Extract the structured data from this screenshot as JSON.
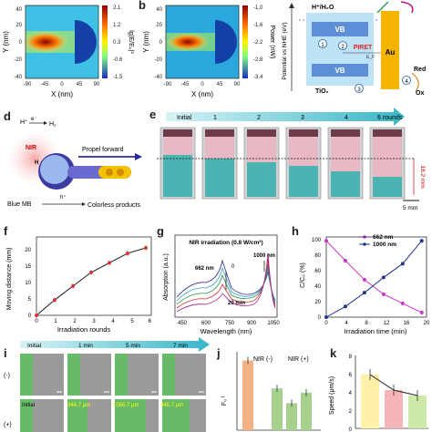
{
  "panels": {
    "a": {
      "ylabel": "Y (nm)",
      "xlabel": "X (nm)",
      "yticks": [
        "40",
        "20",
        "0",
        "-20",
        "-40"
      ],
      "xticks": [
        "-90",
        "-45",
        "0",
        "45",
        "90"
      ],
      "cbar_ticks": [
        "2.1",
        "1.2",
        "0.3",
        "-0.6",
        "-1.5"
      ],
      "cbar_label": "lg|E/E₀|²"
    },
    "b": {
      "label": "b",
      "ylabel": "Y (nm)",
      "xlabel": "X (nm)",
      "yticks": [
        "40",
        "20",
        "0",
        "-20",
        "-40"
      ],
      "xticks": [
        "-90",
        "-45",
        "0",
        "45",
        "90"
      ],
      "cbar_ticks": [
        "-1.0",
        "-1.6",
        "-2.2",
        "-2.8",
        "-3.4"
      ],
      "cbar_label": "Power (nW)"
    },
    "c": {
      "ylabel": "Potential vs NHE (eV)",
      "h_label": "H⁺/H₂O",
      "vb": "VB",
      "cb": "CB",
      "piret": "PIRET",
      "ef": "E_F",
      "tio2": "TiO₂",
      "au": "Au",
      "red": "Red",
      "ox": "Ox",
      "steps": [
        "1",
        "2",
        "3",
        "4"
      ]
    },
    "d": {
      "label": "d",
      "h_plus": "H⁺",
      "e_minus": "e⁻",
      "h2": "H₂",
      "nir": "NIR",
      "h": "H",
      "propel": "Propel forward",
      "blue_mb": "Blue MB",
      "hole": "h⁺",
      "products": "Colorless products"
    },
    "e": {
      "label": "e",
      "steps": [
        "Initial",
        "1",
        "2",
        "3",
        "4",
        "6 rounds"
      ],
      "distance": "18.2 mm",
      "scale": "5 mm"
    },
    "f": {
      "label": "f",
      "ylabel": "Moving distance (mm)",
      "xlabel": "Irradiation rounds",
      "yticks": [
        "0",
        "5",
        "10",
        "15",
        "20"
      ],
      "xticks": [
        "0",
        "1",
        "2",
        "3",
        "4",
        "5",
        "6"
      ]
    },
    "g": {
      "label": "g",
      "title": "NIR irradiation (0.8 W/cm²)",
      "ylabel": "Absorption (a.u.)",
      "xlabel": "Wavelength (nm)",
      "xticks": [
        "450",
        "600",
        "750",
        "900",
        "1050"
      ],
      "ann_662": "662 nm",
      "ann_1000": "1000 nm",
      "ann_0": "0",
      "ann_20": "20 min"
    },
    "h": {
      "label": "h",
      "ylabel": "C/C₀ (%)",
      "xlabel": "Irradiation time (min)",
      "yticks": [
        "0",
        "20",
        "40",
        "60",
        "80",
        "100"
      ],
      "xticks": [
        "0",
        "4",
        "8",
        "12",
        "16",
        "20"
      ],
      "legend": [
        "662 nm",
        "1000 nm"
      ]
    },
    "i": {
      "label": "i",
      "steps": [
        "Initial",
        "1 min",
        "5 min",
        "7 min"
      ],
      "row_minus": "(-)",
      "row_plus": "(+)",
      "row_plus_initial": "Initial",
      "distances": [
        "346.7 μm",
        "1066.7 μm",
        "445.7 μm"
      ]
    },
    "j": {
      "label": "j",
      "ylabel": "F₀ ᴵ",
      "groups": [
        "NIR (-)",
        "NIR (+)"
      ]
    },
    "k": {
      "label": "k",
      "ylabel": "Speed (μm/s)",
      "yticks": [
        "0",
        "2",
        "4",
        "6",
        "8"
      ]
    }
  },
  "chart_data": [
    {
      "type": "line",
      "panel": "f",
      "x": [
        0,
        1,
        2,
        3,
        4,
        5,
        6
      ],
      "y": [
        0,
        4.5,
        8.6,
        12.6,
        15.4,
        18.2,
        19.8
      ],
      "xlabel": "Irradiation rounds",
      "ylabel": "Moving distance (mm)",
      "ylim": [
        0,
        23
      ],
      "xlim": [
        0,
        6.3
      ]
    },
    {
      "type": "line",
      "panel": "h",
      "x": [
        0,
        4,
        8,
        12,
        16,
        20
      ],
      "series": [
        {
          "name": "662 nm",
          "values": [
            100,
            74,
            49,
            30,
            18,
            6
          ],
          "color": "#cc33cc"
        },
        {
          "name": "1000 nm",
          "values": [
            0,
            14,
            32,
            52,
            70,
            100
          ],
          "color": "#22338a"
        }
      ],
      "xlabel": "Irradiation time (min)",
      "ylabel": "C/C₀ (%)",
      "ylim": [
        0,
        105
      ],
      "xlim": [
        0,
        21
      ]
    },
    {
      "type": "bar",
      "panel": "j",
      "values": [
        80,
        48,
        31,
        43
      ],
      "colors": [
        "#f4b183",
        "#a9d18e",
        "#a9d18e",
        "#a9d18e"
      ],
      "ylim": [
        0,
        90
      ]
    },
    {
      "type": "bar",
      "panel": "k",
      "values": [
        5.9,
        4.2,
        3.6
      ],
      "colors": [
        "#fff2a8",
        "#f4b6b6",
        "#cde8a8"
      ],
      "ylim": [
        0,
        8
      ]
    }
  ]
}
